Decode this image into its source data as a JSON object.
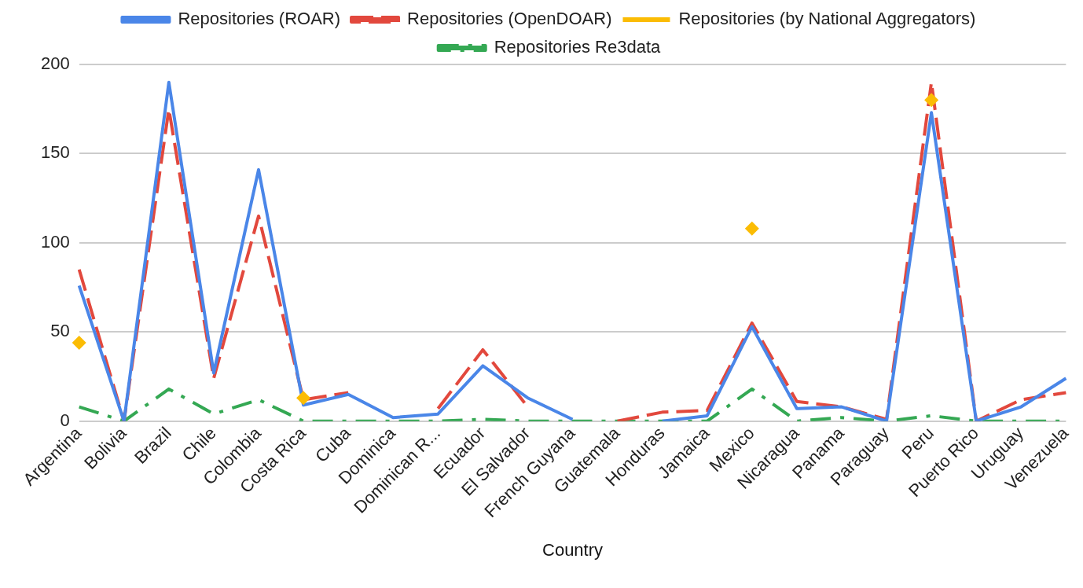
{
  "chart_data": {
    "type": "line",
    "xlabel": "Country",
    "categories": [
      "Argentina",
      "Bolivia",
      "Brazil",
      "Chile",
      "Colombia",
      "Costa Rica",
      "Cuba",
      "Dominica",
      "Dominican R...",
      "Ecuador",
      "El Salvador",
      "French Guyana",
      "Guatemala",
      "Honduras",
      "Jamaica",
      "Mexico",
      "Nicaragua",
      "Panama",
      "Paraguay",
      "Peru",
      "Puerto Rico",
      "Uruguay",
      "Venezuela"
    ],
    "series": [
      {
        "name": "Repositories (ROAR)",
        "color": "#4a86e8",
        "line_style": "solid",
        "values": [
          76,
          0,
          190,
          27,
          141,
          9,
          15,
          2,
          4,
          31,
          13,
          1,
          null,
          0,
          3,
          53,
          7,
          8,
          0,
          173,
          0,
          8,
          24
        ]
      },
      {
        "name": "Repositories (OpenDOAR)",
        "color": "#e2483d",
        "line_style": "dashed",
        "values": [
          85,
          0,
          175,
          24,
          115,
          12,
          16,
          null,
          7,
          40,
          8,
          null,
          0,
          5,
          6,
          55,
          11,
          8,
          1,
          190,
          0,
          12,
          16
        ]
      },
      {
        "name": "Repositories (by National Aggregators)",
        "type": "scatter",
        "marker": "diamond",
        "color": "#fbbc04",
        "values": [
          44,
          null,
          null,
          null,
          null,
          13,
          null,
          null,
          null,
          null,
          null,
          null,
          null,
          null,
          null,
          108,
          null,
          null,
          null,
          180,
          null,
          null,
          null
        ]
      },
      {
        "name": "Repositories Re3data",
        "color": "#34a853",
        "line_style": "dashdot",
        "values": [
          8,
          0,
          18,
          4,
          12,
          0,
          0,
          0,
          0,
          1,
          0,
          0,
          0,
          0,
          0,
          18,
          0,
          2,
          0,
          3,
          0,
          0,
          0
        ]
      }
    ],
    "ylim": [
      0,
      200
    ],
    "yticks": [
      0,
      50,
      100,
      150,
      200
    ],
    "grid": "y",
    "legend": "top",
    "marker": "none"
  }
}
